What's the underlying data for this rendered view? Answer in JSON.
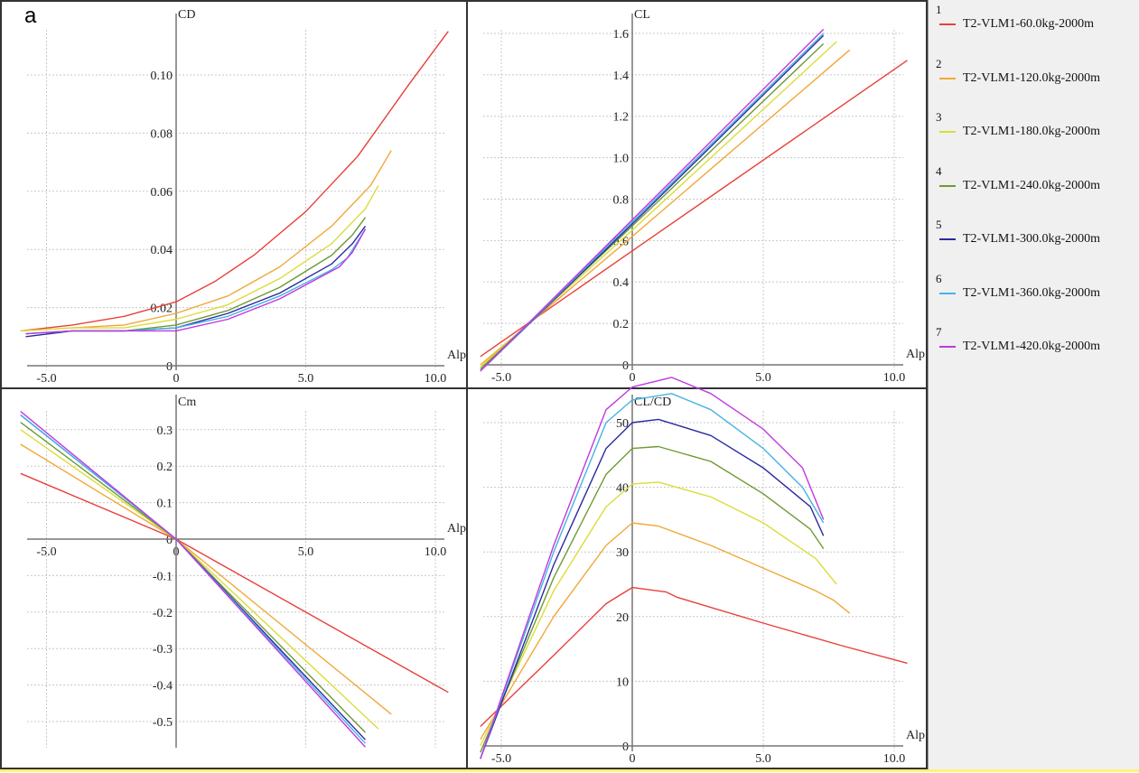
{
  "panel_letter": "a",
  "legend": [
    {
      "num": "1",
      "label": "T2-VLM1-60.0kg-2000m",
      "color": "#e8403a"
    },
    {
      "num": "2",
      "label": "T2-VLM1-120.0kg-2000m",
      "color": "#f0a838"
    },
    {
      "num": "3",
      "label": "T2-VLM1-180.0kg-2000m",
      "color": "#dcdc3c"
    },
    {
      "num": "4",
      "label": "T2-VLM1-240.0kg-2000m",
      "color": "#6e9a34"
    },
    {
      "num": "5",
      "label": "T2-VLM1-300.0kg-2000m",
      "color": "#2a2aa0"
    },
    {
      "num": "6",
      "label": "T2-VLM1-360.0kg-2000m",
      "color": "#44b4e4"
    },
    {
      "num": "7",
      "label": "T2-VLM1-420.0kg-2000m",
      "color": "#c038e0"
    }
  ],
  "chart_data": [
    {
      "type": "line",
      "title": "CD",
      "ylabel": "CD",
      "xlabel": "Alp",
      "xticks": [
        "-5.0",
        "0",
        "5.0",
        "10.0"
      ],
      "xtick_values": [
        -5,
        0,
        5,
        10
      ],
      "yticks": [
        "0",
        "0.02",
        "0.04",
        "0.06",
        "0.08",
        "0.10"
      ],
      "ytick_values": [
        0,
        0.02,
        0.04,
        0.06,
        0.08,
        0.1
      ],
      "xlim": [
        -6,
        10.5
      ],
      "ylim": [
        0,
        0.115
      ],
      "grid": true,
      "series": [
        {
          "name": "T2-VLM1-60.0kg-2000m",
          "x": [
            -6,
            -4,
            -2,
            0,
            1.5,
            3,
            5,
            7,
            9,
            10.5
          ],
          "y": [
            0.012,
            0.014,
            0.017,
            0.022,
            0.029,
            0.038,
            0.053,
            0.072,
            0.097,
            0.115
          ]
        },
        {
          "name": "T2-VLM1-120.0kg-2000m",
          "x": [
            -6,
            -4,
            -2,
            0,
            2,
            4,
            6,
            7.5,
            8.3
          ],
          "y": [
            0.012,
            0.013,
            0.014,
            0.018,
            0.024,
            0.034,
            0.048,
            0.062,
            0.074
          ]
        },
        {
          "name": "T2-VLM1-180.0kg-2000m",
          "x": [
            -6,
            -4,
            -2,
            0,
            2,
            4,
            6,
            7.3,
            7.8
          ],
          "y": [
            0.012,
            0.013,
            0.013,
            0.016,
            0.021,
            0.03,
            0.042,
            0.054,
            0.062
          ]
        },
        {
          "name": "T2-VLM1-240.0kg-2000m",
          "x": [
            -5.8,
            -4,
            -2,
            0,
            2,
            4,
            6,
            6.8,
            7.3
          ],
          "y": [
            0.011,
            0.012,
            0.012,
            0.014,
            0.019,
            0.027,
            0.038,
            0.045,
            0.051
          ]
        },
        {
          "name": "T2-VLM1-300.0kg-2000m",
          "x": [
            -5.8,
            -4,
            -2,
            0,
            2,
            4,
            6,
            6.8,
            7.3
          ],
          "y": [
            0.01,
            0.012,
            0.012,
            0.013,
            0.018,
            0.025,
            0.035,
            0.042,
            0.048
          ]
        },
        {
          "name": "T2-VLM1-360.0kg-2000m",
          "x": [
            -5.8,
            -4,
            -2,
            0,
            2,
            4,
            6,
            6.6,
            7.3
          ],
          "y": [
            0.011,
            0.012,
            0.012,
            0.013,
            0.017,
            0.024,
            0.033,
            0.037,
            0.047
          ]
        },
        {
          "name": "T2-VLM1-420.0kg-2000m",
          "x": [
            -5.8,
            -4,
            -2,
            0,
            2,
            4,
            6.3,
            6.8,
            7.3
          ],
          "y": [
            0.011,
            0.012,
            0.012,
            0.012,
            0.016,
            0.023,
            0.034,
            0.039,
            0.047
          ]
        }
      ]
    },
    {
      "type": "line",
      "title": "CL",
      "ylabel": "CL",
      "xlabel": "Alp",
      "xticks": [
        "-5.0",
        "0",
        "5.0",
        "10.0"
      ],
      "xtick_values": [
        -5,
        0,
        5,
        10
      ],
      "yticks": [
        "0",
        "0.2",
        "0.4",
        "0.6",
        "0.8",
        "1.0",
        "1.2",
        "1.4",
        "1.6"
      ],
      "ytick_values": [
        0,
        0.2,
        0.4,
        0.6,
        0.8,
        1.0,
        1.2,
        1.4,
        1.6
      ],
      "xlim": [
        -6,
        10.5
      ],
      "ylim": [
        0,
        1.6
      ],
      "grid": true,
      "series": [
        {
          "name": "T2-VLM1-60.0kg-2000m",
          "x": [
            -5.8,
            0,
            10.5
          ],
          "y": [
            0.04,
            0.55,
            1.47
          ]
        },
        {
          "name": "T2-VLM1-120.0kg-2000m",
          "x": [
            -5.8,
            0,
            8.3
          ],
          "y": [
            0.0,
            0.62,
            1.52
          ]
        },
        {
          "name": "T2-VLM1-180.0kg-2000m",
          "x": [
            -5.8,
            0,
            7.8
          ],
          "y": [
            -0.01,
            0.65,
            1.56
          ]
        },
        {
          "name": "T2-VLM1-240.0kg-2000m",
          "x": [
            -5.8,
            0,
            7.3
          ],
          "y": [
            -0.02,
            0.67,
            1.55
          ]
        },
        {
          "name": "T2-VLM1-300.0kg-2000m",
          "x": [
            -5.8,
            0,
            7.3
          ],
          "y": [
            -0.03,
            0.68,
            1.59
          ]
        },
        {
          "name": "T2-VLM1-360.0kg-2000m",
          "x": [
            -5.8,
            0,
            7.3
          ],
          "y": [
            -0.03,
            0.69,
            1.6
          ]
        },
        {
          "name": "T2-VLM1-420.0kg-2000m",
          "x": [
            -5.8,
            0,
            7.3
          ],
          "y": [
            -0.03,
            0.7,
            1.62
          ]
        }
      ]
    },
    {
      "type": "line",
      "title": "Cm",
      "ylabel": "Cm",
      "xlabel": "Alp",
      "xticks": [
        "-5.0",
        "0",
        "5.0",
        "10.0"
      ],
      "xtick_values": [
        -5,
        0,
        5,
        10
      ],
      "yticks": [
        "0.3",
        "0.2",
        "0.1",
        "0",
        "-0.1",
        "-0.2",
        "-0.3",
        "-0.4",
        "-0.5"
      ],
      "ytick_values": [
        0.3,
        0.2,
        0.1,
        0,
        -0.1,
        -0.2,
        -0.3,
        -0.4,
        -0.5
      ],
      "xlim": [
        -6,
        10.5
      ],
      "ylim": [
        -0.57,
        0.35
      ],
      "grid": true,
      "series": [
        {
          "name": "T2-VLM1-60.0kg-2000m",
          "x": [
            -6,
            0,
            10.5
          ],
          "y": [
            0.18,
            0.0,
            -0.42
          ]
        },
        {
          "name": "T2-VLM1-120.0kg-2000m",
          "x": [
            -6,
            0,
            8.3
          ],
          "y": [
            0.26,
            0.0,
            -0.48
          ]
        },
        {
          "name": "T2-VLM1-180.0kg-2000m",
          "x": [
            -6,
            0,
            7.8
          ],
          "y": [
            0.3,
            0.0,
            -0.52
          ]
        },
        {
          "name": "T2-VLM1-240.0kg-2000m",
          "x": [
            -6,
            0,
            7.3
          ],
          "y": [
            0.32,
            0.0,
            -0.53
          ]
        },
        {
          "name": "T2-VLM1-300.0kg-2000m",
          "x": [
            -6,
            0,
            7.3
          ],
          "y": [
            0.34,
            0.0,
            -0.55
          ]
        },
        {
          "name": "T2-VLM1-360.0kg-2000m",
          "x": [
            -6,
            0,
            7.3
          ],
          "y": [
            0.34,
            0.0,
            -0.56
          ]
        },
        {
          "name": "T2-VLM1-420.0kg-2000m",
          "x": [
            -6,
            0,
            7.3
          ],
          "y": [
            0.35,
            0.0,
            -0.57
          ]
        }
      ]
    },
    {
      "type": "line",
      "title": "CL/CD",
      "ylabel": "CL/CD",
      "xlabel": "Alp",
      "xticks": [
        "-5.0",
        "0",
        "5.0",
        "10.0"
      ],
      "xtick_values": [
        -5,
        0,
        5,
        10
      ],
      "yticks": [
        "0",
        "10",
        "20",
        "30",
        "40",
        "50"
      ],
      "ytick_values": [
        0,
        10,
        20,
        30,
        40,
        50
      ],
      "xlim": [
        -6,
        10.5
      ],
      "ylim": [
        0,
        57
      ],
      "grid": true,
      "series": [
        {
          "name": "T2-VLM1-60.0kg-2000m",
          "x": [
            -5.8,
            -3,
            -1,
            0,
            1.3,
            1.7,
            5,
            8,
            10.5
          ],
          "y": [
            3,
            14,
            22,
            24.5,
            23.8,
            23,
            19,
            15.5,
            12.8
          ]
        },
        {
          "name": "T2-VLM1-120.0kg-2000m",
          "x": [
            -5.8,
            -3,
            -1,
            0,
            1,
            3,
            5,
            7,
            7.7,
            8.3
          ],
          "y": [
            1,
            20,
            31,
            34.5,
            34,
            31,
            27.5,
            24,
            22.5,
            20.5
          ]
        },
        {
          "name": "T2-VLM1-180.0kg-2000m",
          "x": [
            -5.8,
            -3,
            -1,
            0,
            1,
            3,
            5,
            7,
            7.8
          ],
          "y": [
            0,
            24,
            37,
            40.5,
            40.8,
            38.5,
            34.5,
            29,
            25
          ]
        },
        {
          "name": "T2-VLM1-240.0kg-2000m",
          "x": [
            -5.8,
            -3,
            -1,
            0,
            1,
            3,
            5,
            6.8,
            7.3
          ],
          "y": [
            -1,
            26,
            42,
            46,
            46.3,
            44,
            39,
            33.5,
            30.5
          ]
        },
        {
          "name": "T2-VLM1-300.0kg-2000m",
          "x": [
            -5.8,
            -3,
            -1,
            0,
            1,
            3,
            5,
            6.8,
            7.3
          ],
          "y": [
            -2,
            28,
            46,
            50,
            50.5,
            48,
            43,
            37,
            32.5
          ]
        },
        {
          "name": "T2-VLM1-360.0kg-2000m",
          "x": [
            -5.8,
            -3,
            -1,
            0,
            1.5,
            3,
            5,
            6.5,
            7.3
          ],
          "y": [
            -2,
            30,
            50,
            53.5,
            54.5,
            52,
            46,
            40,
            34.5
          ]
        },
        {
          "name": "T2-VLM1-420.0kg-2000m",
          "x": [
            -5.8,
            -3,
            -1,
            0,
            1.5,
            3,
            5,
            6.5,
            7.3
          ],
          "y": [
            -2,
            31,
            52,
            55.5,
            57,
            54.5,
            49,
            43,
            35
          ]
        }
      ]
    }
  ]
}
